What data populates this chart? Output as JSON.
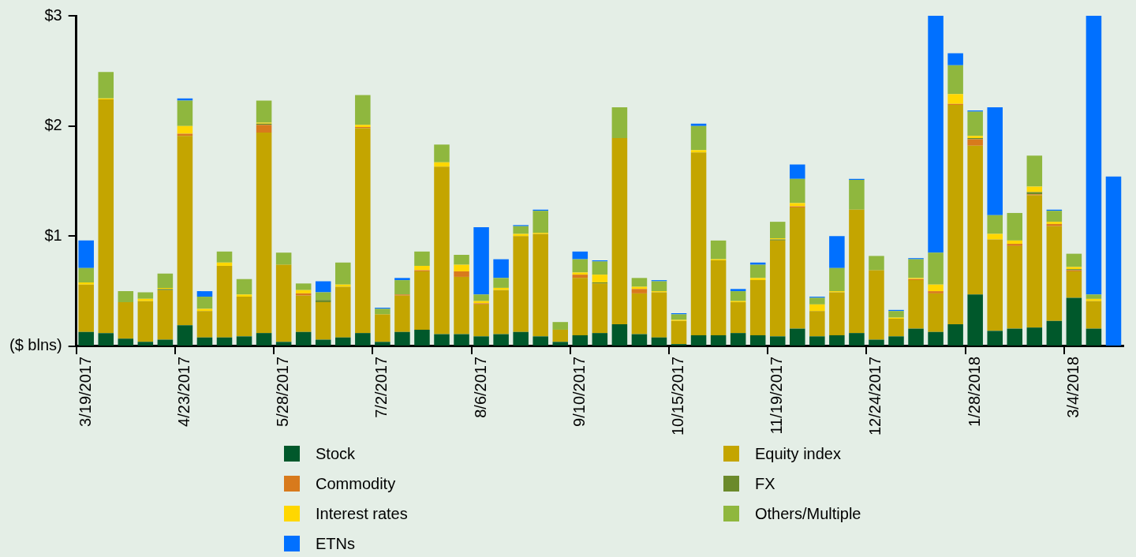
{
  "chart_data": {
    "type": "bar",
    "stacked": true,
    "grid": false,
    "legend": "bottom",
    "categories": [
      "3/19/2017",
      null,
      null,
      null,
      null,
      "4/23/2017",
      null,
      null,
      null,
      null,
      "5/28/2017",
      null,
      null,
      null,
      null,
      "7/2/2017",
      null,
      null,
      null,
      null,
      "8/6/2017",
      null,
      null,
      null,
      null,
      "9/10/2017",
      null,
      null,
      null,
      null,
      "10/15/2017",
      null,
      null,
      null,
      null,
      "11/19/2017",
      null,
      null,
      null,
      null,
      "12/24/2017",
      null,
      null,
      null,
      null,
      "1/28/2018",
      null,
      null,
      null,
      null,
      "3/4/2018",
      null,
      null
    ],
    "ylim": [
      0,
      3
    ],
    "yticks": [
      {
        "value": 0,
        "label": "($ blns)"
      },
      {
        "value": 1,
        "label": "$1"
      },
      {
        "value": 2,
        "label": "$2"
      },
      {
        "value": 3,
        "label": "$3"
      }
    ],
    "series": [
      {
        "name": "Stock",
        "color": "#00582b",
        "values": [
          0.13,
          0.12,
          0.07,
          0.04,
          0.06,
          0.19,
          0.08,
          0.08,
          0.09,
          0.12,
          0.04,
          0.13,
          0.06,
          0.08,
          0.12,
          0.04,
          0.13,
          0.15,
          0.11,
          0.11,
          0.09,
          0.11,
          0.13,
          0.09,
          0.04,
          0.1,
          0.12,
          0.2,
          0.11,
          0.08,
          0.02,
          0.1,
          0.1,
          0.12,
          0.1,
          0.09,
          0.16,
          0.09,
          0.1,
          0.12,
          0.06,
          0.09,
          0.16,
          0.13,
          0.2,
          0.47,
          0.14,
          0.16,
          0.17,
          0.23,
          0.44,
          0.16,
          0
        ]
      },
      {
        "name": "Equity index",
        "color": "#c4a500",
        "values": [
          0.43,
          2.12,
          0.33,
          0.37,
          0.45,
          1.72,
          0.24,
          0.65,
          0.36,
          1.82,
          0.7,
          0.33,
          0.34,
          0.46,
          1.86,
          0.25,
          0.33,
          0.53,
          1.52,
          0.52,
          0.29,
          0.4,
          0.87,
          0.93,
          0.11,
          0.52,
          0.45,
          1.69,
          0.37,
          0.41,
          0.21,
          1.66,
          0.68,
          0.28,
          0.5,
          0.87,
          1.1,
          0.23,
          0.39,
          1.12,
          0.63,
          0.16,
          0.44,
          0.35,
          1.99,
          1.35,
          0.83,
          0.75,
          1.2,
          0.86,
          0.24,
          0.25,
          0
        ]
      },
      {
        "name": "Commodity",
        "color": "#d87a1c",
        "values": [
          0,
          0,
          0,
          0,
          0,
          0.02,
          0,
          0,
          0,
          0.07,
          0,
          0.02,
          0,
          0,
          0.01,
          0,
          0.01,
          0.01,
          0,
          0.05,
          0.01,
          0,
          0,
          0,
          0,
          0.03,
          0,
          0,
          0.04,
          0,
          0,
          0,
          0,
          0,
          0,
          0,
          0.01,
          0,
          0,
          0,
          0,
          0,
          0.01,
          0.02,
          0.01,
          0.06,
          0,
          0.02,
          0.01,
          0.02,
          0.01,
          0,
          0
        ]
      },
      {
        "name": "FX",
        "color": "#6b8a2b",
        "values": [
          0,
          0,
          0,
          0,
          0.01,
          0,
          0,
          0,
          0,
          0.01,
          0,
          0,
          0.02,
          0,
          0,
          0,
          0,
          0,
          0,
          0,
          0,
          0,
          0,
          0,
          0,
          0,
          0.01,
          0,
          0,
          0,
          0,
          0,
          0,
          0,
          0,
          0.01,
          0,
          0,
          0,
          0,
          0,
          0,
          0,
          0,
          0,
          0.01,
          0,
          0,
          0.02,
          0,
          0.01,
          0,
          0
        ]
      },
      {
        "name": "Interest rates",
        "color": "#ffd700",
        "values": [
          0.02,
          0.01,
          0,
          0.02,
          0.01,
          0.07,
          0.02,
          0.03,
          0.02,
          0.01,
          0,
          0.03,
          0,
          0.02,
          0.02,
          0,
          0,
          0.04,
          0.04,
          0.06,
          0.02,
          0.02,
          0.02,
          0.01,
          0,
          0.02,
          0.07,
          0,
          0.02,
          0.01,
          0.01,
          0.02,
          0.01,
          0.01,
          0.02,
          0.01,
          0.03,
          0.06,
          0.01,
          0,
          0,
          0.01,
          0.01,
          0.06,
          0.09,
          0.02,
          0.05,
          0.03,
          0.05,
          0.02,
          0.02,
          0.02,
          0
        ]
      },
      {
        "name": "Others/Multiple",
        "color": "#8fb73e",
        "values": [
          0.13,
          0.24,
          0.1,
          0.06,
          0.13,
          0.23,
          0.11,
          0.1,
          0.14,
          0.2,
          0.11,
          0.06,
          0.07,
          0.2,
          0.27,
          0.05,
          0.13,
          0.13,
          0.16,
          0.09,
          0.06,
          0.09,
          0.07,
          0.2,
          0.07,
          0.12,
          0.12,
          0.28,
          0.08,
          0.09,
          0.05,
          0.22,
          0.17,
          0.09,
          0.12,
          0.15,
          0.22,
          0.06,
          0.21,
          0.27,
          0.13,
          0.06,
          0.17,
          0.29,
          0.26,
          0.22,
          0.17,
          0.25,
          0.28,
          0.1,
          0.12,
          0.04,
          0
        ]
      },
      {
        "name": "ETNs",
        "color": "#0070ff",
        "values": [
          0.25,
          0,
          0,
          0,
          0,
          0.02,
          0.05,
          0,
          0,
          0,
          0,
          0,
          0.1,
          0,
          0,
          0.01,
          0.02,
          0,
          0,
          0,
          0.61,
          0.17,
          0.01,
          0.01,
          0,
          0.07,
          0.01,
          0,
          0,
          0.01,
          0.01,
          0.02,
          0,
          0.02,
          0.02,
          0,
          0.13,
          0.01,
          0.29,
          0.01,
          0,
          0.01,
          0.01,
          2.15,
          0.11,
          0.01,
          0.98,
          0,
          0,
          0.01,
          0,
          2.53,
          1.54
        ]
      }
    ]
  }
}
